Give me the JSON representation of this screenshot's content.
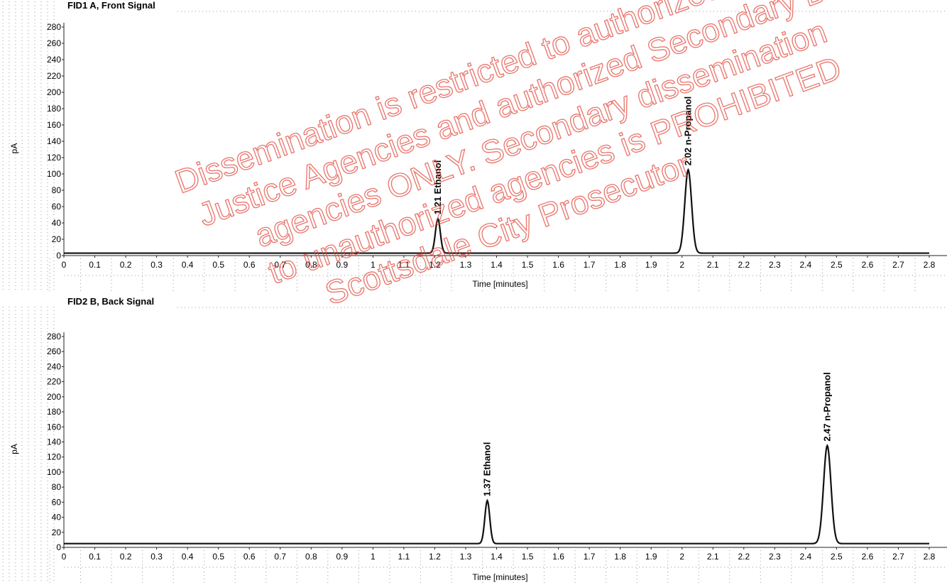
{
  "watermark": {
    "lines": [
      "Dissemination is restricted to authorized Criminal",
      "Justice Agencies and authorized Secondary Disse",
      "agencies ONLY. Secondary dissemination",
      "to unauthorized agencies is PROHIBITED",
      "Scottsdale City Prosecutor"
    ],
    "color": "#e0463a"
  },
  "colors": {
    "trace": "#111111",
    "axis": "#222222",
    "grid": "#9a9a9a"
  },
  "chart_data": [
    {
      "type": "line",
      "title": "FID1 A, Front Signal",
      "xlabel": "Time [minutes]",
      "ylabel": "pA",
      "xlim": [
        0,
        2.8
      ],
      "ylim": [
        0,
        280
      ],
      "xticks": [
        "0",
        "0.1",
        "0.2",
        "0.3",
        "0.4",
        "0.5",
        "0.6",
        "0.7",
        "0.8",
        "0.9",
        "1",
        "1.1",
        "1.2",
        "1.3",
        "1.4",
        "1.5",
        "1.6",
        "1.7",
        "1.8",
        "1.9",
        "2",
        "2.1",
        "2.2",
        "2.3",
        "2.4",
        "2.5",
        "2.6",
        "2.7",
        "2.8"
      ],
      "yticks": [
        "0",
        "20",
        "40",
        "60",
        "80",
        "100",
        "120",
        "140",
        "160",
        "180",
        "200",
        "220",
        "240",
        "260",
        "280"
      ],
      "grid": true,
      "baseline": 3,
      "peaks": [
        {
          "time": 1.21,
          "height": 42,
          "width": 0.008,
          "label": "1.21  Ethanol"
        },
        {
          "time": 2.02,
          "height": 102,
          "width": 0.011,
          "label": "2.02  n-Propanol"
        }
      ]
    },
    {
      "type": "line",
      "title": "FID2 B, Back Signal",
      "xlabel": "Time [minutes]",
      "ylabel": "pA",
      "xlim": [
        0,
        2.8
      ],
      "ylim": [
        0,
        280
      ],
      "xticks": [
        "0",
        "0.1",
        "0.2",
        "0.3",
        "0.4",
        "0.5",
        "0.6",
        "0.7",
        "0.8",
        "0.9",
        "1",
        "1.1",
        "1.2",
        "1.3",
        "1.4",
        "1.5",
        "1.6",
        "1.7",
        "1.8",
        "1.9",
        "2",
        "2.1",
        "2.2",
        "2.3",
        "2.4",
        "2.5",
        "2.6",
        "2.7",
        "2.8"
      ],
      "yticks": [
        "0",
        "20",
        "40",
        "60",
        "80",
        "100",
        "120",
        "140",
        "160",
        "180",
        "200",
        "220",
        "240",
        "260",
        "280"
      ],
      "grid": true,
      "baseline": 5,
      "peaks": [
        {
          "time": 1.37,
          "height": 57,
          "width": 0.008,
          "label": "1.37  Ethanol"
        },
        {
          "time": 2.47,
          "height": 130,
          "width": 0.012,
          "label": "2.47  n-Propanol"
        }
      ]
    }
  ]
}
